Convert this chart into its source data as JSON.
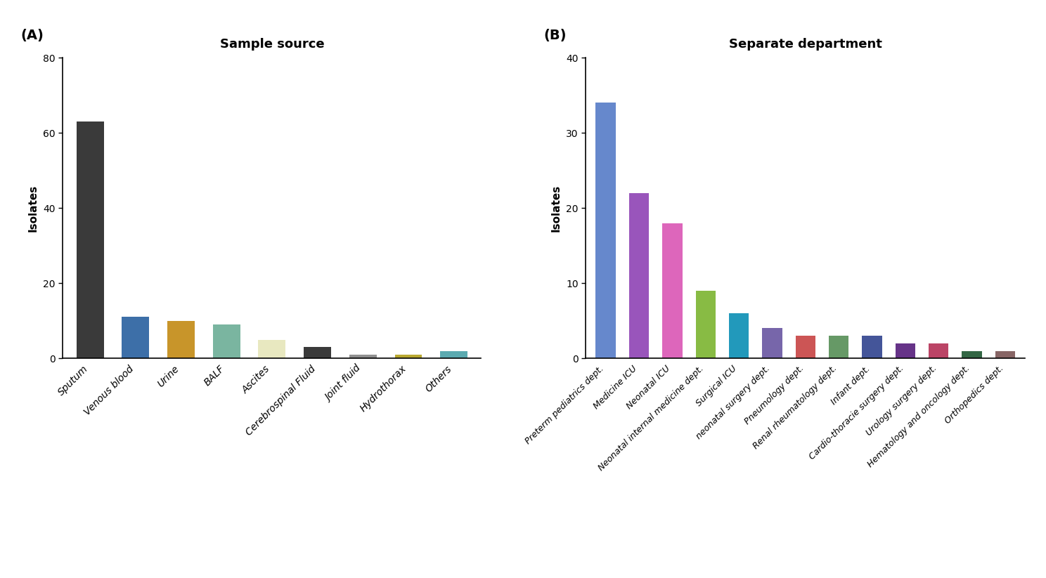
{
  "panel_A": {
    "title": "Sample source",
    "categories": [
      "Sputum",
      "Venous blood",
      "Urine",
      "BALF",
      "Ascites",
      "Cerebrospinal Fluid",
      "Joint fluid",
      "Hydrothorax",
      "Others"
    ],
    "values": [
      63,
      11,
      10,
      9,
      5,
      3,
      1,
      1,
      2
    ],
    "colors": [
      "#3a3a3a",
      "#3d6fa8",
      "#c8952a",
      "#7ab5a0",
      "#e8e8c0",
      "#3a3a3a",
      "#909090",
      "#b8a830",
      "#5baab0"
    ],
    "ylabel": "Isolates",
    "ylim": [
      0,
      80
    ],
    "yticks": [
      0,
      20,
      40,
      60,
      80
    ]
  },
  "panel_B": {
    "title": "Separate department",
    "categories": [
      "Preterm pediatrics dept.",
      "Medicine ICU",
      "Neonatal ICU",
      "Neonatal internal medicine dept.",
      "Surgical ICU",
      "neonatal surgery dept.",
      "Pneumology dept.",
      "Renal rheumatology dept.",
      "Infant dept.",
      "Cardio-thoracie surgery dept.",
      "Urology surgery dept.",
      "Hematology and oncology dept.",
      "Orthopedics dept."
    ],
    "values": [
      34,
      22,
      18,
      9,
      6,
      4,
      3,
      3,
      3,
      2,
      2,
      1,
      1
    ],
    "colors": [
      "#6688cc",
      "#9955bb",
      "#dd66bb",
      "#88bb44",
      "#2299bb",
      "#7766aa",
      "#cc5555",
      "#669966",
      "#445599",
      "#663388",
      "#bb4466",
      "#336644",
      "#886666"
    ],
    "ylabel": "Isolates",
    "ylim": [
      0,
      40
    ],
    "yticks": [
      0,
      10,
      20,
      30,
      40
    ]
  },
  "label_A": "(A)",
  "label_B": "(B)"
}
